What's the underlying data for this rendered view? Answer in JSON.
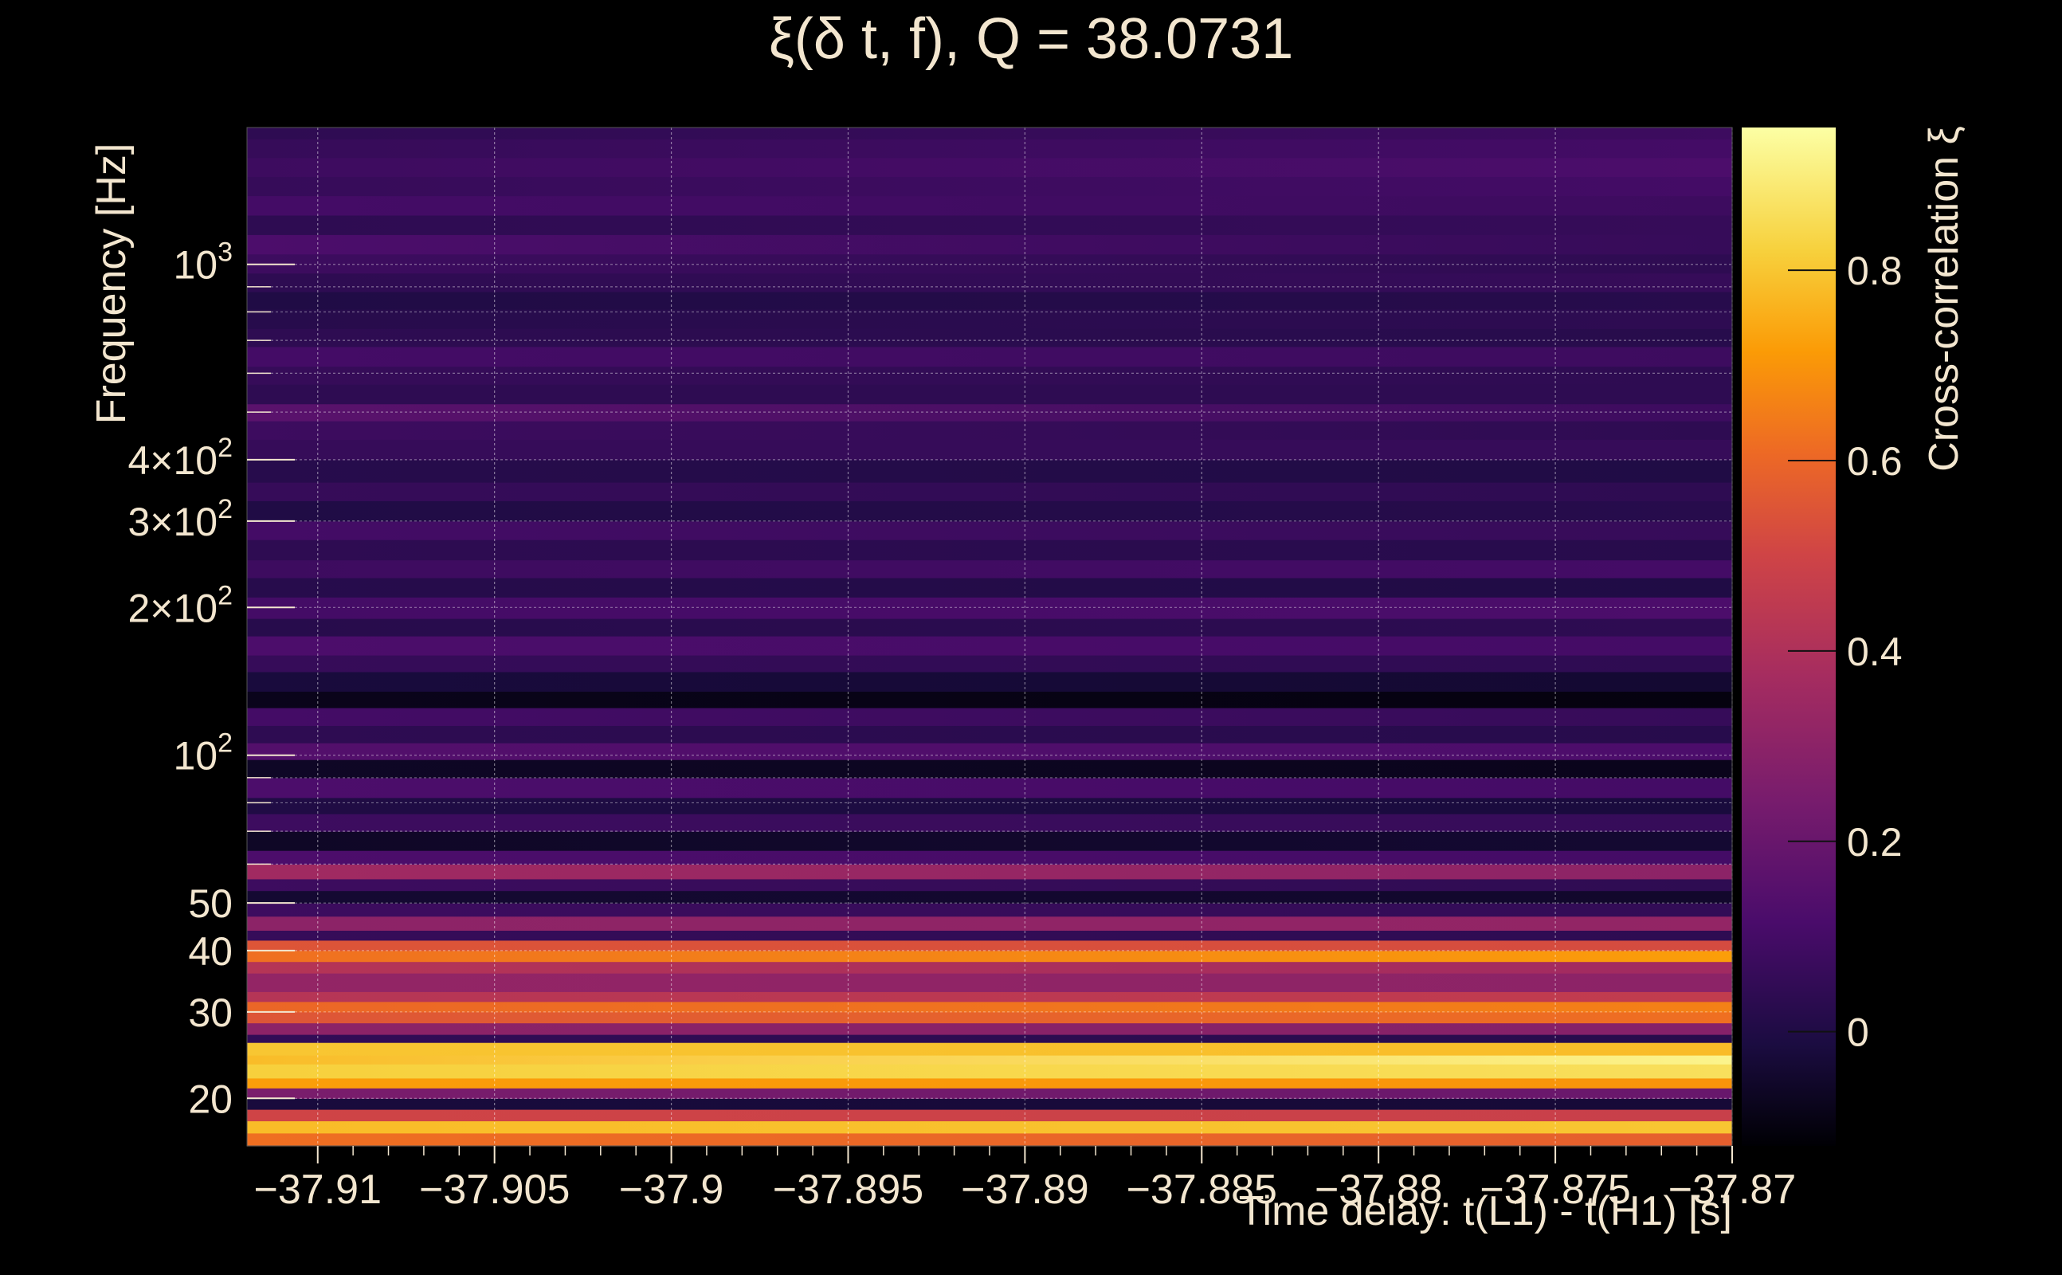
{
  "chart_data": {
    "type": "heatmap",
    "title": "ξ(δ t, f), Q = 38.0731",
    "xlabel": "Time delay: t(L1) - t(H1) [s]",
    "ylabel": "Frequency [Hz]",
    "colorbar_label": "Cross-correlation ξ",
    "xlim": [
      -37.912,
      -37.87
    ],
    "ylim": [
      16,
      1900
    ],
    "yscale": "log",
    "x_ticks": [
      {
        "value": -37.91,
        "label": "−37.91"
      },
      {
        "value": -37.905,
        "label": "−37.905"
      },
      {
        "value": -37.9,
        "label": "−37.9"
      },
      {
        "value": -37.895,
        "label": "−37.895"
      },
      {
        "value": -37.89,
        "label": "−37.89"
      },
      {
        "value": -37.885,
        "label": "−37.885"
      },
      {
        "value": -37.88,
        "label": "−37.88"
      },
      {
        "value": -37.875,
        "label": "−37.875"
      },
      {
        "value": -37.87,
        "label": "−37.87"
      }
    ],
    "y_ticks": [
      {
        "value": 20,
        "label": "20"
      },
      {
        "value": 30,
        "label": "30"
      },
      {
        "value": 40,
        "label": "40"
      },
      {
        "value": 50,
        "label": "50"
      },
      {
        "value": 100,
        "label": "10",
        "sup": "2"
      },
      {
        "value": 200,
        "label": "2×10",
        "sup": "2"
      },
      {
        "value": 300,
        "label": "3×10",
        "sup": "2"
      },
      {
        "value": 400,
        "label": "4×10",
        "sup": "2"
      },
      {
        "value": 1000,
        "label": "10",
        "sup": "3"
      }
    ],
    "colorbar": {
      "range": [
        -0.12,
        0.95
      ],
      "colormap": "inferno",
      "ticks": [
        {
          "value": 0,
          "label": "0"
        },
        {
          "value": 0.2,
          "label": "0.2"
        },
        {
          "value": 0.4,
          "label": "0.4"
        },
        {
          "value": 0.6,
          "label": "0.6"
        },
        {
          "value": 0.8,
          "label": "0.8"
        }
      ]
    },
    "frequency_bands": [
      {
        "f_low": 16,
        "f_high": 17,
        "xi_left": 0.62,
        "xi_right": 0.58
      },
      {
        "f_low": 17,
        "f_high": 18,
        "xi_left": 0.78,
        "xi_right": 0.8
      },
      {
        "f_low": 18,
        "f_high": 19,
        "xi_left": 0.5,
        "xi_right": 0.48
      },
      {
        "f_low": 19,
        "f_high": 20,
        "xi_left": -0.02,
        "xi_right": -0.03
      },
      {
        "f_low": 20,
        "f_high": 21,
        "xi_left": 0.25,
        "xi_right": 0.2
      },
      {
        "f_low": 21,
        "f_high": 22,
        "xi_left": 0.72,
        "xi_right": 0.7
      },
      {
        "f_low": 22,
        "f_high": 23.5,
        "xi_left": 0.82,
        "xi_right": 0.86
      },
      {
        "f_low": 23.5,
        "f_high": 24.5,
        "xi_left": 0.78,
        "xi_right": 0.92
      },
      {
        "f_low": 24.5,
        "f_high": 26,
        "xi_left": 0.8,
        "xi_right": 0.78
      },
      {
        "f_low": 26,
        "f_high": 27,
        "xi_left": 0.05,
        "xi_right": 0.02
      },
      {
        "f_low": 27,
        "f_high": 28.5,
        "xi_left": 0.3,
        "xi_right": 0.28
      },
      {
        "f_low": 28.5,
        "f_high": 30,
        "xi_left": 0.55,
        "xi_right": 0.62
      },
      {
        "f_low": 30,
        "f_high": 31.5,
        "xi_left": 0.6,
        "xi_right": 0.66
      },
      {
        "f_low": 31.5,
        "f_high": 33,
        "xi_left": 0.42,
        "xi_right": 0.46
      },
      {
        "f_low": 33,
        "f_high": 36,
        "xi_left": 0.32,
        "xi_right": 0.3
      },
      {
        "f_low": 36,
        "f_high": 38,
        "xi_left": 0.42,
        "xi_right": 0.36
      },
      {
        "f_low": 38,
        "f_high": 40,
        "xi_left": 0.62,
        "xi_right": 0.72
      },
      {
        "f_low": 40,
        "f_high": 42,
        "xi_left": 0.55,
        "xi_right": 0.52
      },
      {
        "f_low": 42,
        "f_high": 44,
        "xi_left": 0.06,
        "xi_right": 0.04
      },
      {
        "f_low": 44,
        "f_high": 47,
        "xi_left": 0.3,
        "xi_right": 0.32
      },
      {
        "f_low": 47,
        "f_high": 50,
        "xi_left": 0.08,
        "xi_right": 0.05
      },
      {
        "f_low": 50,
        "f_high": 53,
        "xi_left": -0.04,
        "xi_right": -0.05
      },
      {
        "f_low": 53,
        "f_high": 56,
        "xi_left": 0.08,
        "xi_right": 0.04
      },
      {
        "f_low": 56,
        "f_high": 60,
        "xi_left": 0.36,
        "xi_right": 0.3
      },
      {
        "f_low": 60,
        "f_high": 64,
        "xi_left": 0.12,
        "xi_right": 0.1
      },
      {
        "f_low": 64,
        "f_high": 70,
        "xi_left": -0.06,
        "xi_right": -0.04
      },
      {
        "f_low": 70,
        "f_high": 76,
        "xi_left": 0.08,
        "xi_right": 0.06
      },
      {
        "f_low": 76,
        "f_high": 82,
        "xi_left": 0.0,
        "xi_right": -0.02
      },
      {
        "f_low": 82,
        "f_high": 90,
        "xi_left": 0.12,
        "xi_right": 0.1
      },
      {
        "f_low": 90,
        "f_high": 98,
        "xi_left": -0.06,
        "xi_right": -0.08
      },
      {
        "f_low": 98,
        "f_high": 106,
        "xi_left": 0.14,
        "xi_right": 0.12
      },
      {
        "f_low": 106,
        "f_high": 115,
        "xi_left": 0.04,
        "xi_right": 0.02
      },
      {
        "f_low": 115,
        "f_high": 125,
        "xi_left": 0.1,
        "xi_right": 0.06
      },
      {
        "f_low": 125,
        "f_high": 135,
        "xi_left": -0.08,
        "xi_right": -0.1
      },
      {
        "f_low": 135,
        "f_high": 148,
        "xi_left": -0.02,
        "xi_right": -0.04
      },
      {
        "f_low": 148,
        "f_high": 160,
        "xi_left": 0.06,
        "xi_right": 0.04
      },
      {
        "f_low": 160,
        "f_high": 175,
        "xi_left": 0.12,
        "xi_right": 0.1
      },
      {
        "f_low": 175,
        "f_high": 190,
        "xi_left": 0.02,
        "xi_right": 0.04
      },
      {
        "f_low": 190,
        "f_high": 210,
        "xi_left": 0.1,
        "xi_right": 0.12
      },
      {
        "f_low": 210,
        "f_high": 230,
        "xi_left": 0.02,
        "xi_right": 0.0
      },
      {
        "f_low": 230,
        "f_high": 250,
        "xi_left": 0.08,
        "xi_right": 0.1
      },
      {
        "f_low": 250,
        "f_high": 275,
        "xi_left": 0.04,
        "xi_right": 0.02
      },
      {
        "f_low": 275,
        "f_high": 300,
        "xi_left": 0.1,
        "xi_right": 0.06
      },
      {
        "f_low": 300,
        "f_high": 330,
        "xi_left": 0.0,
        "xi_right": 0.02
      },
      {
        "f_low": 330,
        "f_high": 360,
        "xi_left": 0.06,
        "xi_right": 0.04
      },
      {
        "f_low": 360,
        "f_high": 400,
        "xi_left": 0.02,
        "xi_right": 0.0
      },
      {
        "f_low": 400,
        "f_high": 440,
        "xi_left": 0.06,
        "xi_right": 0.06
      },
      {
        "f_low": 440,
        "f_high": 480,
        "xi_left": 0.08,
        "xi_right": 0.04
      },
      {
        "f_low": 480,
        "f_high": 520,
        "xi_left": 0.16,
        "xi_right": 0.08
      },
      {
        "f_low": 520,
        "f_high": 570,
        "xi_left": 0.04,
        "xi_right": 0.04
      },
      {
        "f_low": 570,
        "f_high": 620,
        "xi_left": 0.06,
        "xi_right": 0.04
      },
      {
        "f_low": 620,
        "f_high": 680,
        "xi_left": 0.1,
        "xi_right": 0.08
      },
      {
        "f_low": 680,
        "f_high": 740,
        "xi_left": 0.04,
        "xi_right": 0.02
      },
      {
        "f_low": 740,
        "f_high": 810,
        "xi_left": 0.02,
        "xi_right": 0.04
      },
      {
        "f_low": 810,
        "f_high": 880,
        "xi_left": 0.0,
        "xi_right": 0.02
      },
      {
        "f_low": 880,
        "f_high": 960,
        "xi_left": 0.04,
        "xi_right": 0.06
      },
      {
        "f_low": 960,
        "f_high": 1050,
        "xi_left": 0.08,
        "xi_right": 0.04
      },
      {
        "f_low": 1050,
        "f_high": 1150,
        "xi_left": 0.12,
        "xi_right": 0.06
      },
      {
        "f_low": 1150,
        "f_high": 1260,
        "xi_left": 0.04,
        "xi_right": 0.06
      },
      {
        "f_low": 1260,
        "f_high": 1380,
        "xi_left": 0.1,
        "xi_right": 0.08
      },
      {
        "f_low": 1380,
        "f_high": 1510,
        "xi_left": 0.06,
        "xi_right": 0.1
      },
      {
        "f_low": 1510,
        "f_high": 1650,
        "xi_left": 0.08,
        "xi_right": 0.12
      },
      {
        "f_low": 1650,
        "f_high": 1800,
        "xi_left": 0.06,
        "xi_right": 0.1
      },
      {
        "f_low": 1800,
        "f_high": 1900,
        "xi_left": 0.04,
        "xi_right": 0.08
      }
    ]
  }
}
